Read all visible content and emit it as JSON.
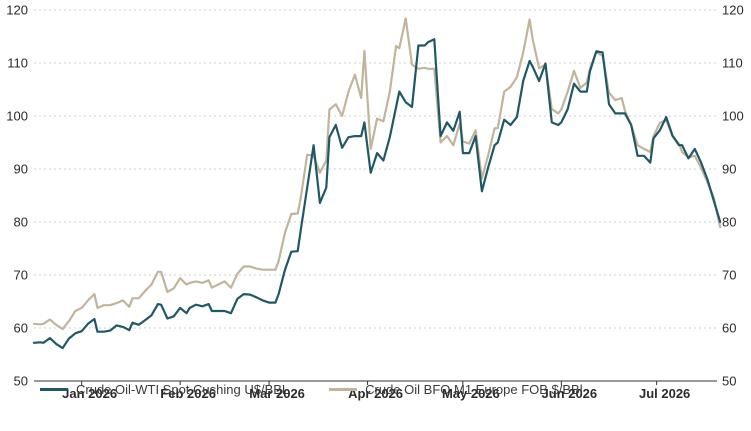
{
  "chart_data": {
    "type": "line",
    "title": "",
    "xlabel": "",
    "ylabel": "",
    "ylim": [
      50,
      120
    ],
    "y_ticks": [
      "50",
      "60",
      "70",
      "80",
      "90",
      "100",
      "110",
      "120"
    ],
    "y_axis_sides": "left and right",
    "grid": "horizontal dotted",
    "legend_position": "bottom",
    "x_range": [
      "2025-12-17",
      "2026-07-20"
    ],
    "x_ticks": [
      {
        "label": "Jan 2026",
        "date": "2026-01-01"
      },
      {
        "label": "Feb 2026",
        "date": "2026-02-01"
      },
      {
        "label": "Mar 2026",
        "date": "2026-03-01"
      },
      {
        "label": "Apr 2026",
        "date": "2026-04-01"
      },
      {
        "label": "May 2026",
        "date": "2026-05-01"
      },
      {
        "label": "Jun 2026",
        "date": "2026-06-01"
      },
      {
        "label": "Jul 2026",
        "date": "2026-07-01"
      }
    ],
    "series": [
      {
        "name": "Crude Oil-WTI Spot Cushing U$/BBL",
        "color": "#1f5866",
        "points": [
          [
            "2025-12-17",
            57.2
          ],
          [
            "2025-12-19",
            57.3
          ],
          [
            "2025-12-20",
            57.2
          ],
          [
            "2025-12-22",
            58.1
          ],
          [
            "2025-12-24",
            57
          ],
          [
            "2025-12-26",
            56.2
          ],
          [
            "2025-12-28",
            58
          ],
          [
            "2025-12-30",
            59
          ],
          [
            "2026-01-01",
            59.4
          ],
          [
            "2026-01-03",
            60.8
          ],
          [
            "2026-01-05",
            61.7
          ],
          [
            "2026-01-06",
            59.3
          ],
          [
            "2026-01-08",
            59.3
          ],
          [
            "2026-01-10",
            59.5
          ],
          [
            "2026-01-12",
            60.5
          ],
          [
            "2026-01-14",
            60.2
          ],
          [
            "2026-01-16",
            59.6
          ],
          [
            "2026-01-17",
            61
          ],
          [
            "2026-01-19",
            60.6
          ],
          [
            "2026-01-21",
            61.5
          ],
          [
            "2026-01-23",
            62.4
          ],
          [
            "2026-01-25",
            64.5
          ],
          [
            "2026-01-26",
            64.4
          ],
          [
            "2026-01-28",
            61.8
          ],
          [
            "2026-01-30",
            62.2
          ],
          [
            "2026-02-01",
            63.8
          ],
          [
            "2026-02-03",
            62.8
          ],
          [
            "2026-02-04",
            63.8
          ],
          [
            "2026-02-06",
            64.4
          ],
          [
            "2026-02-08",
            64.1
          ],
          [
            "2026-02-10",
            64.5
          ],
          [
            "2026-02-11",
            63.2
          ],
          [
            "2026-02-13",
            63.2
          ],
          [
            "2026-02-15",
            63.2
          ],
          [
            "2026-02-17",
            62.8
          ],
          [
            "2026-02-19",
            65.5
          ],
          [
            "2026-02-21",
            66.4
          ],
          [
            "2026-02-23",
            66.3
          ],
          [
            "2026-02-25",
            65.8
          ],
          [
            "2026-02-27",
            65.2
          ],
          [
            "2026-03-01",
            64.8
          ],
          [
            "2026-03-03",
            64.8
          ],
          [
            "2026-03-04",
            66.4
          ],
          [
            "2026-03-06",
            71
          ],
          [
            "2026-03-08",
            74.4
          ],
          [
            "2026-03-10",
            74.5
          ],
          [
            "2026-03-11",
            78.5
          ],
          [
            "2026-03-13",
            86.5
          ],
          [
            "2026-03-15",
            94.5
          ],
          [
            "2026-03-17",
            83.6
          ],
          [
            "2026-03-19",
            86.5
          ],
          [
            "2026-03-20",
            96
          ],
          [
            "2026-03-22",
            98.3
          ],
          [
            "2026-03-24",
            94
          ],
          [
            "2026-03-26",
            96
          ],
          [
            "2026-03-28",
            96.2
          ],
          [
            "2026-03-30",
            96.2
          ],
          [
            "2026-03-31",
            98.8
          ],
          [
            "2026-04-02",
            89.3
          ],
          [
            "2026-04-04",
            93
          ],
          [
            "2026-04-06",
            91.6
          ],
          [
            "2026-04-08",
            96
          ],
          [
            "2026-04-10",
            101.7
          ],
          [
            "2026-04-11",
            104.6
          ],
          [
            "2026-04-13",
            102.6
          ],
          [
            "2026-04-15",
            101.7
          ],
          [
            "2026-04-17",
            113.3
          ],
          [
            "2026-04-19",
            113.3
          ],
          [
            "2026-04-20",
            113.9
          ],
          [
            "2026-04-22",
            114.5
          ],
          [
            "2026-04-24",
            96.2
          ],
          [
            "2026-04-26",
            98.8
          ],
          [
            "2026-04-28",
            97.2
          ],
          [
            "2026-04-30",
            100.8
          ],
          [
            "2026-05-01",
            93
          ],
          [
            "2026-05-03",
            93
          ],
          [
            "2026-05-05",
            96.2
          ],
          [
            "2026-05-07",
            85.8
          ],
          [
            "2026-05-09",
            90.4
          ],
          [
            "2026-05-11",
            94.5
          ],
          [
            "2026-05-12",
            95
          ],
          [
            "2026-05-14",
            99.3
          ],
          [
            "2026-05-16",
            98.3
          ],
          [
            "2026-05-18",
            99.8
          ],
          [
            "2026-05-20",
            106.6
          ],
          [
            "2026-05-22",
            110.4
          ],
          [
            "2026-05-23",
            109.3
          ],
          [
            "2026-05-25",
            106.6
          ],
          [
            "2026-05-27",
            109.9
          ],
          [
            "2026-05-29",
            98.8
          ],
          [
            "2026-05-31",
            98.3
          ],
          [
            "2026-06-01",
            98.8
          ],
          [
            "2026-06-03",
            101.3
          ],
          [
            "2026-06-05",
            106.1
          ],
          [
            "2026-06-07",
            104.6
          ],
          [
            "2026-06-09",
            104.6
          ],
          [
            "2026-06-10",
            108.4
          ],
          [
            "2026-06-12",
            112.2
          ],
          [
            "2026-06-14",
            112
          ],
          [
            "2026-06-16",
            102.2
          ],
          [
            "2026-06-18",
            100.5
          ],
          [
            "2026-06-20",
            100.5
          ],
          [
            "2026-06-21",
            100.5
          ],
          [
            "2026-06-23",
            98.3
          ],
          [
            "2026-06-25",
            92.5
          ],
          [
            "2026-06-27",
            92.5
          ],
          [
            "2026-06-29",
            91.2
          ],
          [
            "2026-06-30",
            95.8
          ],
          [
            "2026-07-02",
            97.3
          ],
          [
            "2026-07-04",
            99.8
          ],
          [
            "2026-07-06",
            96.3
          ],
          [
            "2026-07-08",
            94.5
          ],
          [
            "2026-07-09",
            94.5
          ],
          [
            "2026-07-11",
            92
          ],
          [
            "2026-07-13",
            93.8
          ],
          [
            "2026-07-15",
            91.2
          ],
          [
            "2026-07-17",
            88
          ],
          [
            "2026-07-19",
            84
          ],
          [
            "2026-07-21",
            80
          ]
        ]
      },
      {
        "name": "Crude Oil BFO M1 Europe FOB $/BBl",
        "color": "#c2b49a",
        "points": [
          [
            "2025-12-17",
            60.8
          ],
          [
            "2025-12-19",
            60.7
          ],
          [
            "2025-12-20",
            60.8
          ],
          [
            "2025-12-22",
            61.6
          ],
          [
            "2025-12-24",
            60.6
          ],
          [
            "2025-12-26",
            59.8
          ],
          [
            "2025-12-28",
            61.3
          ],
          [
            "2025-12-30",
            63.2
          ],
          [
            "2026-01-01",
            63.8
          ],
          [
            "2026-01-03",
            65.2
          ],
          [
            "2026-01-05",
            66.4
          ],
          [
            "2026-01-06",
            63.8
          ],
          [
            "2026-01-08",
            64.3
          ],
          [
            "2026-01-10",
            64.3
          ],
          [
            "2026-01-12",
            64.7
          ],
          [
            "2026-01-14",
            65.2
          ],
          [
            "2026-01-16",
            64
          ],
          [
            "2026-01-17",
            65.6
          ],
          [
            "2026-01-19",
            65.6
          ],
          [
            "2026-01-21",
            67
          ],
          [
            "2026-01-23",
            68.2
          ],
          [
            "2026-01-25",
            70.6
          ],
          [
            "2026-01-26",
            70.6
          ],
          [
            "2026-01-28",
            66.8
          ],
          [
            "2026-01-30",
            67.5
          ],
          [
            "2026-02-01",
            69.4
          ],
          [
            "2026-02-03",
            68.2
          ],
          [
            "2026-02-04",
            68.5
          ],
          [
            "2026-02-06",
            68.8
          ],
          [
            "2026-02-08",
            68.5
          ],
          [
            "2026-02-10",
            69
          ],
          [
            "2026-02-11",
            67.6
          ],
          [
            "2026-02-13",
            68.2
          ],
          [
            "2026-02-15",
            68.8
          ],
          [
            "2026-02-17",
            67.6
          ],
          [
            "2026-02-19",
            70.2
          ],
          [
            "2026-02-21",
            71.6
          ],
          [
            "2026-02-23",
            71.6
          ],
          [
            "2026-02-25",
            71.2
          ],
          [
            "2026-02-27",
            71
          ],
          [
            "2026-03-01",
            71
          ],
          [
            "2026-03-03",
            71
          ],
          [
            "2026-03-04",
            72.6
          ],
          [
            "2026-03-06",
            78
          ],
          [
            "2026-03-08",
            81.5
          ],
          [
            "2026-03-10",
            81.6
          ],
          [
            "2026-03-11",
            84.6
          ],
          [
            "2026-03-13",
            92.7
          ],
          [
            "2026-03-15",
            92.5
          ],
          [
            "2026-03-17",
            89.3
          ],
          [
            "2026-03-19",
            91.6
          ],
          [
            "2026-03-20",
            101.2
          ],
          [
            "2026-03-22",
            102.2
          ],
          [
            "2026-03-24",
            100
          ],
          [
            "2026-03-26",
            104.6
          ],
          [
            "2026-03-28",
            107.8
          ],
          [
            "2026-03-30",
            103.4
          ],
          [
            "2026-03-31",
            112.3
          ],
          [
            "2026-04-02",
            93.8
          ],
          [
            "2026-04-04",
            99.5
          ],
          [
            "2026-04-06",
            99
          ],
          [
            "2026-04-08",
            104.6
          ],
          [
            "2026-04-10",
            113.2
          ],
          [
            "2026-04-11",
            112.8
          ],
          [
            "2026-04-13",
            118.4
          ],
          [
            "2026-04-15",
            109.7
          ],
          [
            "2026-04-17",
            108.9
          ],
          [
            "2026-04-19",
            109.1
          ],
          [
            "2026-04-20",
            108.9
          ],
          [
            "2026-04-22",
            108.9
          ],
          [
            "2026-04-24",
            95
          ],
          [
            "2026-04-26",
            96.2
          ],
          [
            "2026-04-28",
            94.5
          ],
          [
            "2026-04-30",
            98.5
          ],
          [
            "2026-05-01",
            95.2
          ],
          [
            "2026-05-03",
            94.8
          ],
          [
            "2026-05-05",
            97.3
          ],
          [
            "2026-05-07",
            88.2
          ],
          [
            "2026-05-09",
            92.7
          ],
          [
            "2026-05-11",
            97.7
          ],
          [
            "2026-05-12",
            97.7
          ],
          [
            "2026-05-14",
            104.6
          ],
          [
            "2026-05-16",
            105.5
          ],
          [
            "2026-05-18",
            107.3
          ],
          [
            "2026-05-20",
            112
          ],
          [
            "2026-05-22",
            118.2
          ],
          [
            "2026-05-23",
            114.5
          ],
          [
            "2026-05-25",
            109
          ],
          [
            "2026-05-27",
            109.7
          ],
          [
            "2026-05-29",
            101.3
          ],
          [
            "2026-05-31",
            100.5
          ],
          [
            "2026-06-01",
            101.2
          ],
          [
            "2026-06-03",
            104.6
          ],
          [
            "2026-06-05",
            108.5
          ],
          [
            "2026-06-07",
            105.3
          ],
          [
            "2026-06-09",
            106.3
          ],
          [
            "2026-06-10",
            108.9
          ],
          [
            "2026-06-12",
            112.1
          ],
          [
            "2026-06-14",
            111.3
          ],
          [
            "2026-06-16",
            104.4
          ],
          [
            "2026-06-18",
            103
          ],
          [
            "2026-06-20",
            103.4
          ],
          [
            "2026-06-21",
            101
          ],
          [
            "2026-06-23",
            98.3
          ],
          [
            "2026-06-25",
            94.5
          ],
          [
            "2026-06-27",
            93.8
          ],
          [
            "2026-06-29",
            93.2
          ],
          [
            "2026-06-30",
            96.2
          ],
          [
            "2026-07-02",
            98.7
          ],
          [
            "2026-07-04",
            99.2
          ],
          [
            "2026-07-06",
            96.2
          ],
          [
            "2026-07-08",
            94.8
          ],
          [
            "2026-07-09",
            93.2
          ],
          [
            "2026-07-11",
            92.2
          ],
          [
            "2026-07-13",
            92.5
          ],
          [
            "2026-07-15",
            90.2
          ],
          [
            "2026-07-17",
            87.5
          ],
          [
            "2026-07-19",
            84.6
          ],
          [
            "2026-07-21",
            79
          ]
        ]
      }
    ]
  },
  "legend": {
    "wti_label": "Crude Oil-WTI Spot Cushing U$/BBL",
    "brent_label": "Crude Oil BFO M1 Europe FOB $/BBl"
  },
  "colors": {
    "wti": "#1f5866",
    "brent": "#c2b49a",
    "grid": "#cfcfcf",
    "axis": "#333333"
  }
}
